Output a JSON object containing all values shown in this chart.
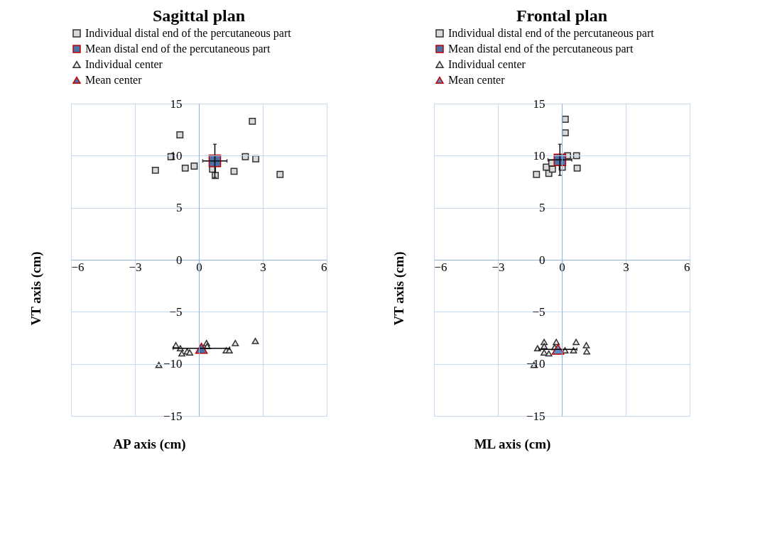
{
  "chart_data": [
    {
      "type": "scatter",
      "title": "Sagittal plan",
      "xlabel": "AP axis (cm)",
      "ylabel": "VT axis (cm)",
      "xlim": [
        -6,
        6
      ],
      "ylim": [
        -15,
        15
      ],
      "xticks": [
        -6,
        -3,
        0,
        3,
        6
      ],
      "yticks": [
        -15,
        -10,
        -5,
        0,
        5,
        10,
        15
      ],
      "grid": true,
      "legend": "top",
      "series": [
        {
          "name": "Individual distal end of the percutaneous part",
          "color": "#d9d9d9",
          "marker": "square",
          "x": [
            2.51,
            -0.89,
            -1.31,
            -2.04,
            -0.64,
            -0.22,
            0.64,
            0.77,
            1.65,
            2.18,
            2.67,
            3.81
          ],
          "values": [
            13.3,
            12.0,
            9.9,
            8.6,
            8.8,
            9.0,
            8.7,
            8.1,
            8.5,
            9.9,
            9.7,
            8.2
          ]
        },
        {
          "name": "Mean distal end of the percutaneous part",
          "color": "#4a72a8",
          "marker": "square",
          "x": [
            0.75
          ],
          "values": [
            9.5
          ],
          "errors": [
            1.6
          ],
          "xerrors": [
            0.57
          ]
        },
        {
          "name": "Individual center",
          "color": "#e6e6e6",
          "marker": "triangle",
          "x": [
            -1.08,
            -0.87,
            -0.8,
            -0.55,
            -0.43,
            0.36,
            0.39,
            1.28,
            1.43,
            1.71,
            2.65,
            -1.88
          ],
          "values": [
            -8.2,
            -8.5,
            -9.0,
            -8.8,
            -8.9,
            -8.0,
            -8.3,
            -8.7,
            -8.7,
            -8.0,
            -7.8,
            -10.1
          ]
        },
        {
          "name": "Mean center",
          "color": "#4a72a8",
          "marker": "triangle",
          "x": [
            0.12
          ],
          "values": [
            -8.5
          ],
          "xerrors": [
            1.33
          ]
        }
      ]
    },
    {
      "type": "scatter",
      "title": "Frontal plan",
      "xlabel": "ML axis (cm)",
      "ylabel": "VT axis (cm)",
      "xlim": [
        -6,
        6
      ],
      "ylim": [
        -15,
        15
      ],
      "xticks": [
        -6,
        -3,
        0,
        3,
        6
      ],
      "yticks": [
        -15,
        -10,
        -5,
        0,
        5,
        10,
        15
      ],
      "grid": true,
      "legend": "top",
      "series": [
        {
          "name": "Individual distal end of the percutaneous part",
          "color": "#d9d9d9",
          "marker": "square",
          "x": [
            0.16,
            0.16,
            0.69,
            0.27,
            0.72,
            -1.19,
            -0.73,
            -0.61,
            -0.44,
            -0.47,
            0.02
          ],
          "values": [
            13.5,
            12.2,
            10.0,
            10.0,
            8.8,
            8.2,
            8.9,
            8.3,
            8.7,
            9.3,
            8.9
          ]
        },
        {
          "name": "Mean distal end of the percutaneous part",
          "color": "#4a72a8",
          "marker": "square",
          "x": [
            -0.09
          ],
          "values": [
            9.6
          ],
          "errors": [
            1.5
          ],
          "xerrors": [
            0.56
          ]
        },
        {
          "name": "Individual center",
          "color": "#e6e6e6",
          "marker": "triangle",
          "x": [
            -1.14,
            -0.83,
            -0.83,
            -0.83,
            -0.61,
            -0.26,
            -0.34,
            0.15,
            0.55,
            0.67,
            1.15,
            1.17,
            -1.31
          ],
          "values": [
            -8.5,
            -7.9,
            -8.3,
            -8.9,
            -9.0,
            -7.9,
            -8.4,
            -8.7,
            -8.7,
            -7.9,
            -8.2,
            -8.8,
            -10.1
          ]
        },
        {
          "name": "Mean center",
          "color": "#5b8cc8",
          "marker": "triangle",
          "x": [
            -0.18
          ],
          "values": [
            -8.6
          ],
          "xerrors": [
            0.89
          ]
        }
      ]
    }
  ]
}
